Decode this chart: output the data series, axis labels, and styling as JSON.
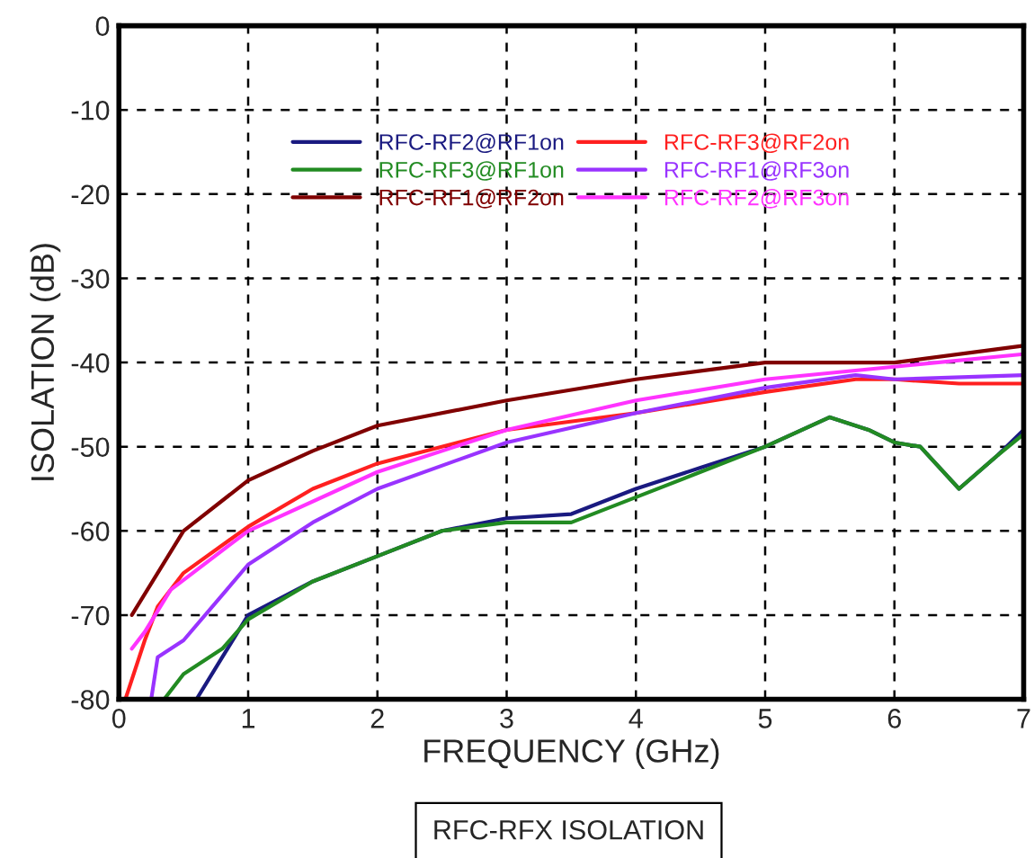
{
  "chart_data": {
    "type": "line",
    "xlabel": "FREQUENCY (GHz)",
    "ylabel": "ISOLATION (dB)",
    "annotations": [
      "RFC-RFX ISOLATION"
    ],
    "xlim": [
      0,
      7
    ],
    "ylim": [
      -80,
      0
    ],
    "xticks": [
      0,
      1,
      2,
      3,
      4,
      5,
      6,
      7
    ],
    "yticks": [
      -80,
      -70,
      -60,
      -50,
      -40,
      -30,
      -20,
      -10,
      0
    ],
    "grid": true,
    "legend": "top",
    "line_style": "solid",
    "marker": "none",
    "series": [
      {
        "name": "RFC-RF2@RF1on",
        "color": "#1a1a80",
        "x": [
          0.6,
          0.8,
          1,
          1.5,
          2,
          2.5,
          3,
          3.5,
          4,
          4.5,
          5,
          5.5,
          5.8,
          6,
          6.2,
          6.5,
          6.8,
          7
        ],
        "values": [
          -80,
          -75,
          -70,
          -66,
          -63,
          -60,
          -58.5,
          -58,
          -55,
          -52.5,
          -50,
          -46.5,
          -48,
          -49.5,
          -50,
          -55,
          -51,
          -48
        ]
      },
      {
        "name": "RFC-RF3@RF1on",
        "color": "#228b22",
        "x": [
          0.35,
          0.5,
          0.8,
          1,
          1.5,
          2,
          2.5,
          3,
          3.5,
          4,
          4.5,
          5,
          5.5,
          5.8,
          6,
          6.2,
          6.5,
          6.8,
          7
        ],
        "values": [
          -80,
          -77,
          -74,
          -70.5,
          -66,
          -63,
          -60,
          -59,
          -59,
          -56,
          -53,
          -50,
          -46.5,
          -48,
          -49.5,
          -50,
          -55,
          -51,
          -48.5
        ]
      },
      {
        "name": "RFC-RF1@RF2on",
        "color": "#800000",
        "x": [
          0.1,
          0.3,
          0.5,
          1,
          1.5,
          2,
          3,
          4,
          5,
          6,
          7
        ],
        "values": [
          -70,
          -65,
          -60,
          -54,
          -50.5,
          -47.5,
          -44.5,
          -42,
          -40,
          -40,
          -38
        ]
      },
      {
        "name": "RFC-RF3@RF2on",
        "color": "#ff2020",
        "x": [
          0.05,
          0.2,
          0.3,
          0.5,
          1,
          1.5,
          2,
          3,
          4,
          5,
          5.7,
          6,
          6.5,
          7
        ],
        "values": [
          -80,
          -73,
          -69,
          -65,
          -59.5,
          -55,
          -52,
          -48,
          -46,
          -43.5,
          -42,
          -42,
          -42.5,
          -42.5
        ]
      },
      {
        "name": "RFC-RF1@RF3on",
        "color": "#9933ff",
        "x": [
          0.25,
          0.3,
          0.5,
          1,
          1.5,
          2,
          3,
          4,
          5,
          5.7,
          6,
          7
        ],
        "values": [
          -80,
          -75,
          -73,
          -64,
          -59,
          -55,
          -49.5,
          -46,
          -43,
          -41.5,
          -42,
          -41.5
        ]
      },
      {
        "name": "RFC-RF2@RF3on",
        "color": "#ff33ff",
        "x": [
          0.1,
          0.2,
          0.4,
          1,
          2,
          3,
          4,
          5,
          6,
          7
        ],
        "values": [
          -74,
          -72,
          -67,
          -60,
          -53,
          -48,
          -44.5,
          -42,
          -40.5,
          -39
        ]
      }
    ]
  }
}
